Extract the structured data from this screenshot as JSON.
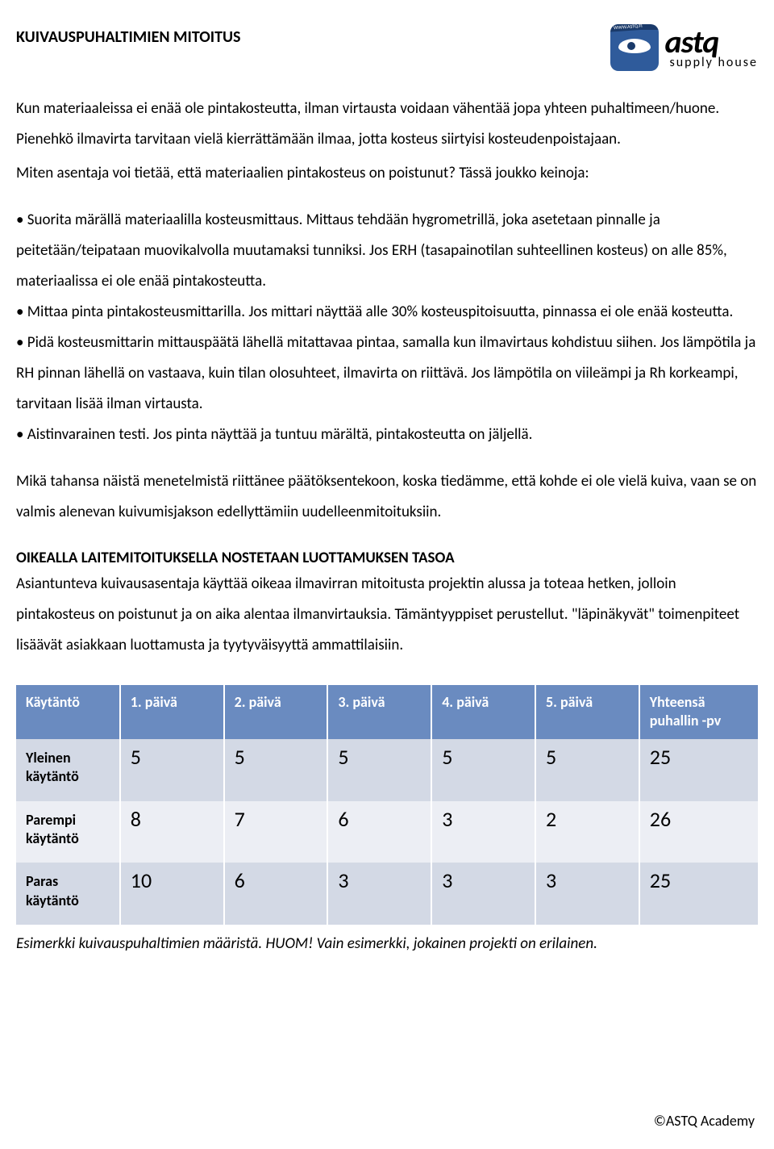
{
  "logo": {
    "main": "astq",
    "sub": "supply house",
    "ribbon": "WWW.ASTQ.FI"
  },
  "title": "KUIVAUSPUHALTIMIEN MITOITUS",
  "intro1": "Kun materiaaleissa ei enää ole pintakosteutta, ilman virtausta voidaan vähentää jopa yhteen puhaltimeen/huone. Pienehkö ilmavirta tarvitaan vielä kierrättämään ilmaa, jotta kosteus siirtyisi kosteudenpoistajaan.",
  "intro2": "Miten asentaja voi tietää, että materiaalien pintakosteus on poistunut? Tässä joukko keinoja:",
  "bullets": [
    "• Suorita märällä materiaalilla kosteusmittaus. Mittaus tehdään hygrometrillä, joka asetetaan pinnalle ja peitetään/teipataan muovikalvolla muutamaksi tunniksi. Jos ERH (tasapainotilan suhteellinen kosteus) on alle 85%, materiaalissa ei ole enää pintakosteutta.",
    "• Mittaa pinta pintakosteusmittarilla. Jos mittari näyttää alle 30% kosteuspitoisuutta, pinnassa ei ole enää kosteutta.",
    "• Pidä kosteusmittarin mittauspäätä lähellä mitattavaa pintaa, samalla kun ilmavirtaus kohdistuu siihen. Jos lämpötila ja RH pinnan lähellä on vastaava, kuin tilan olosuhteet, ilmavirta on riittävä. Jos lämpötila on viileämpi ja Rh korkeampi, tarvitaan lisää ilman virtausta.",
    "• Aistinvarainen testi. Jos pinta näyttää ja tuntuu märältä, pintakosteutta on jäljellä."
  ],
  "conclusion": "Mikä tahansa näistä menetelmistä riittänee päätöksentekoon, koska tiedämme, että kohde ei ole vielä kuiva, vaan se on valmis alenevan kuivumisjakson edellyttämiin uudelleenmitoituksiin.",
  "section2_heading": "OIKEALLA LAITEMITOITUKSELLA NOSTETAAN LUOTTAMUKSEN TASOA",
  "section2_body": "Asiantunteva kuivausasentaja käyttää oikeaa ilmavirran mitoitusta projektin alussa ja toteaa hetken, jolloin pintakosteus on poistunut ja on aika alentaa ilmanvirtauksia. Tämäntyyppiset perustellut. \"läpinäkyvät\" toimenpiteet lisäävät asiakkaan luottamusta ja tyytyväisyyttä ammattilaisiin.",
  "table": {
    "headers": [
      "Käytäntö",
      "1. päivä",
      "2. päivä",
      "3. päivä",
      "4. päivä",
      "5. päivä",
      "Yhteensä puhallin -pv"
    ],
    "rows": [
      {
        "label": "Yleinen käytäntö",
        "cells": [
          "5",
          "5",
          "5",
          "5",
          "5",
          "25"
        ],
        "class": "row-a"
      },
      {
        "label": "Parempi käytäntö",
        "cells": [
          "8",
          "7",
          "6",
          "3",
          "2",
          "26"
        ],
        "class": "row-b"
      },
      {
        "label": "Paras käytäntö",
        "cells": [
          "10",
          "6",
          "3",
          "3",
          "3",
          "25"
        ],
        "class": "row-a"
      }
    ],
    "header_bg": "#6a8bc0",
    "row_a_bg": "#d3d9e5",
    "row_b_bg": "#eceef4"
  },
  "caption": "Esimerkki kuivauspuhaltimien määristä. HUOM! Vain esimerkki, jokainen projekti on erilainen.",
  "footer": "©ASTQ Academy"
}
